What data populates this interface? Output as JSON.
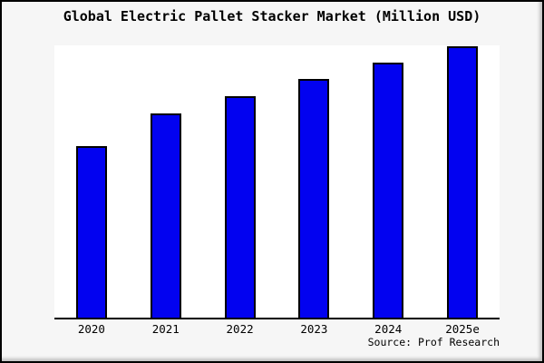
{
  "chart_data": {
    "type": "bar",
    "title": "Global Electric Pallet Stacker Market (Million USD)",
    "categories": [
      "2020",
      "2021",
      "2022",
      "2023",
      "2024",
      "2025e"
    ],
    "values": [
      63,
      75,
      81.3,
      87.7,
      93.8,
      99.8
    ],
    "values_note": "No y-axis ticks shown in chart; values estimated as relative bar heights (percent of plot height)",
    "xlabel": "",
    "ylabel": "",
    "ylim": [
      0,
      100
    ],
    "grid": false,
    "legend": false,
    "source": "Source: Prof Research",
    "colors": {
      "bar_fill": "#0202f0",
      "bar_border": "#000000",
      "canvas_background": "#f6f6f6",
      "plot_background": "#ffffff",
      "axis_line": "#000000",
      "text": "#000000"
    }
  }
}
